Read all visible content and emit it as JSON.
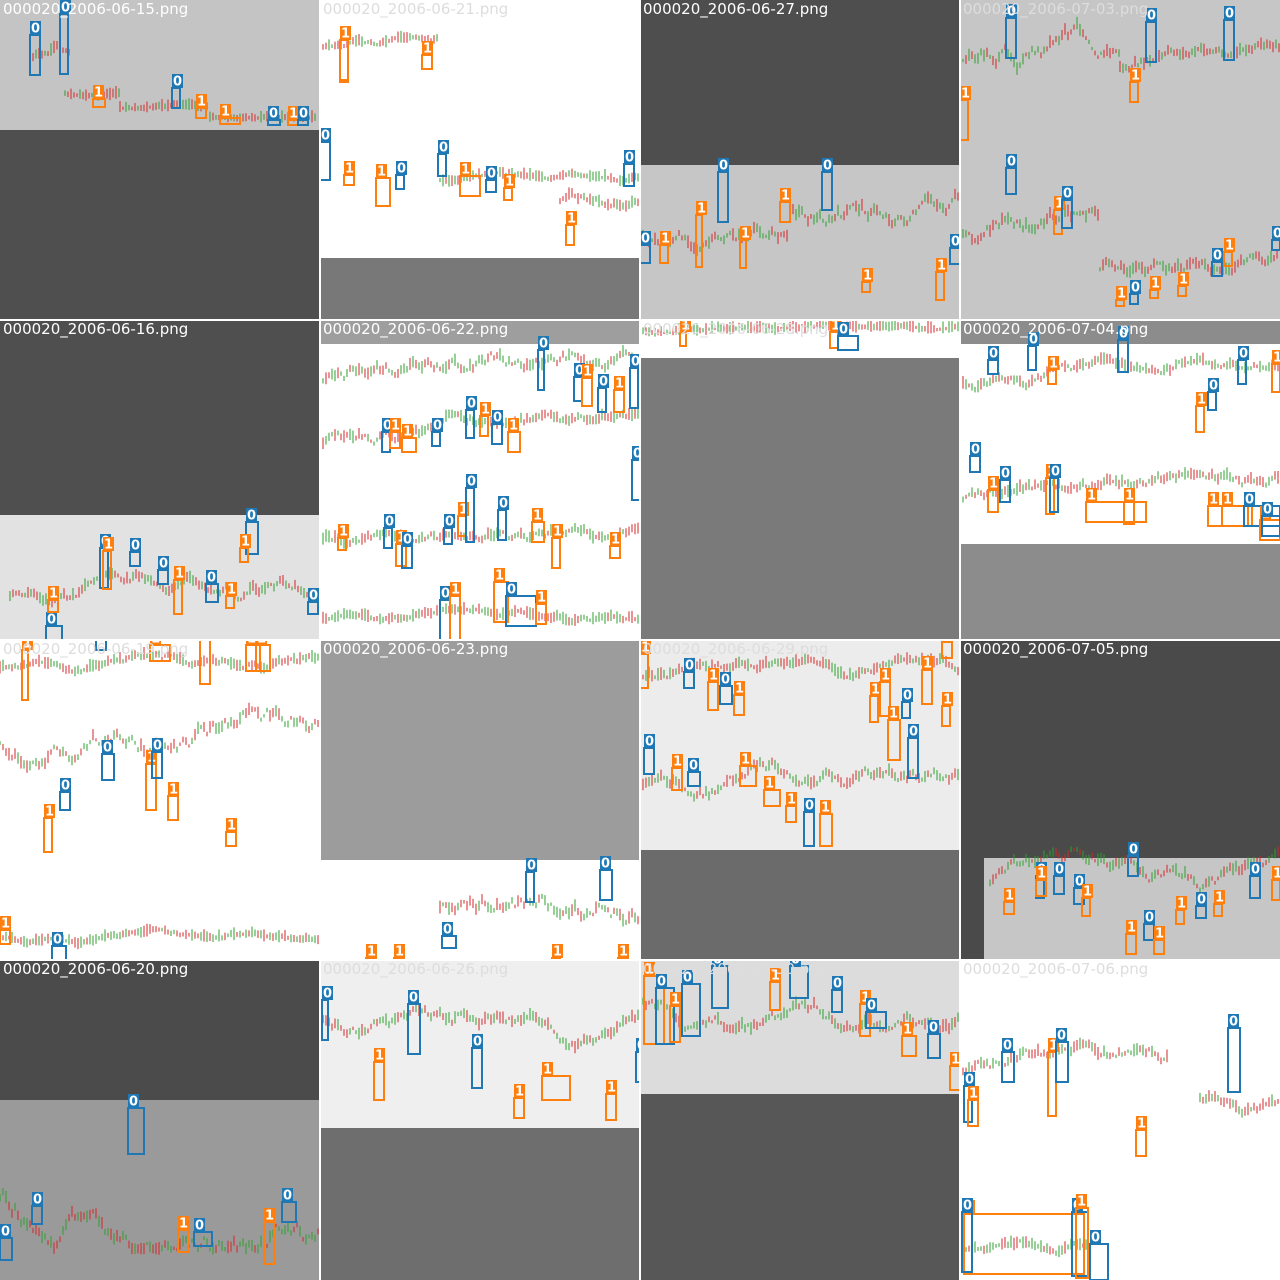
{
  "colors": {
    "class0": "#1f77b4",
    "class1": "#ff7f0e",
    "candle_up": "#2ca02c",
    "candle_down": "#d62728",
    "divider": "#ffffff"
  },
  "chart_data": {
    "type": "mosaic",
    "grid": {
      "rows": 4,
      "cols": 4
    },
    "tiles": [
      {
        "title": "000020_2006-06-15.png",
        "title_color": "#ffffff"
      },
      {
        "title": "000020_2006-06-21.png",
        "title_color": "#dddddd"
      },
      {
        "title": "000020_2006-06-27.png",
        "title_color": "#ffffff"
      },
      {
        "title": "000020_2006-07-03.png",
        "title_color": "#dddddd"
      },
      {
        "title": "000020_2006-06-16.png",
        "title_color": "#ffffff"
      },
      {
        "title": "000020_2006-06-22.png",
        "title_color": "#ffffff"
      },
      {
        "title": "000020_2006-06-28.png",
        "title_color": "#dddddd"
      },
      {
        "title": "000020_2006-07-04.png",
        "title_color": "#ffffff"
      },
      {
        "title": "000020_2006-06-19.png",
        "title_color": "#dddddd"
      },
      {
        "title": "000020_2006-06-23.png",
        "title_color": "#ffffff"
      },
      {
        "title": "000020_2006-06-29.png",
        "title_color": "#dddddd"
      },
      {
        "title": "000020_2006-07-05.png",
        "title_color": "#ffffff"
      },
      {
        "title": "000020_2006-06-20.png",
        "title_color": "#ffffff"
      },
      {
        "title": "000020_2006-06-26.png",
        "title_color": "#dddddd"
      },
      {
        "title": "000020_2006-06-30.png",
        "title_color": "#dddddd"
      },
      {
        "title": "000020_2006-07-06.png",
        "title_color": "#dddddd"
      }
    ],
    "box_label_counts": [
      {
        "tile": "000020_2006-06-15.png",
        "class_0": 6,
        "class_1": 4
      },
      {
        "tile": "000020_2006-06-21.png",
        "class_0": 6,
        "class_1": 10
      },
      {
        "tile": "000020_2006-06-27.png",
        "class_0": 5,
        "class_1": 7
      },
      {
        "tile": "000020_2006-07-03.png",
        "class_0": 8,
        "class_1": 9
      },
      {
        "tile": "000020_2006-06-16.png",
        "class_0": 7,
        "class_1": 5
      },
      {
        "tile": "000020_2006-06-22.png",
        "class_0": 16,
        "class_1": 15
      },
      {
        "tile": "000020_2006-06-28.png",
        "class_0": 2,
        "class_1": 2
      },
      {
        "tile": "000020_2006-07-04.png",
        "class_0": 10,
        "class_1": 10
      },
      {
        "tile": "000020_2006-06-19.png",
        "class_0": 7,
        "class_1": 10
      },
      {
        "tile": "000020_2006-06-23.png",
        "class_0": 3,
        "class_1": 4
      },
      {
        "tile": "000020_2006-06-29.png",
        "class_0": 12,
        "class_1": 14
      },
      {
        "tile": "000020_2006-07-05.png",
        "class_0": 9,
        "class_1": 9
      },
      {
        "tile": "000020_2006-06-20.png",
        "class_0": 5,
        "class_1": 2
      },
      {
        "tile": "000020_2006-06-26.png",
        "class_0": 3,
        "class_1": 4
      },
      {
        "tile": "000020_2006-06-30.png",
        "class_0": 7,
        "class_1": 7
      },
      {
        "tile": "000020_2006-07-06.png",
        "class_0": 6,
        "class_1": 5
      }
    ]
  }
}
